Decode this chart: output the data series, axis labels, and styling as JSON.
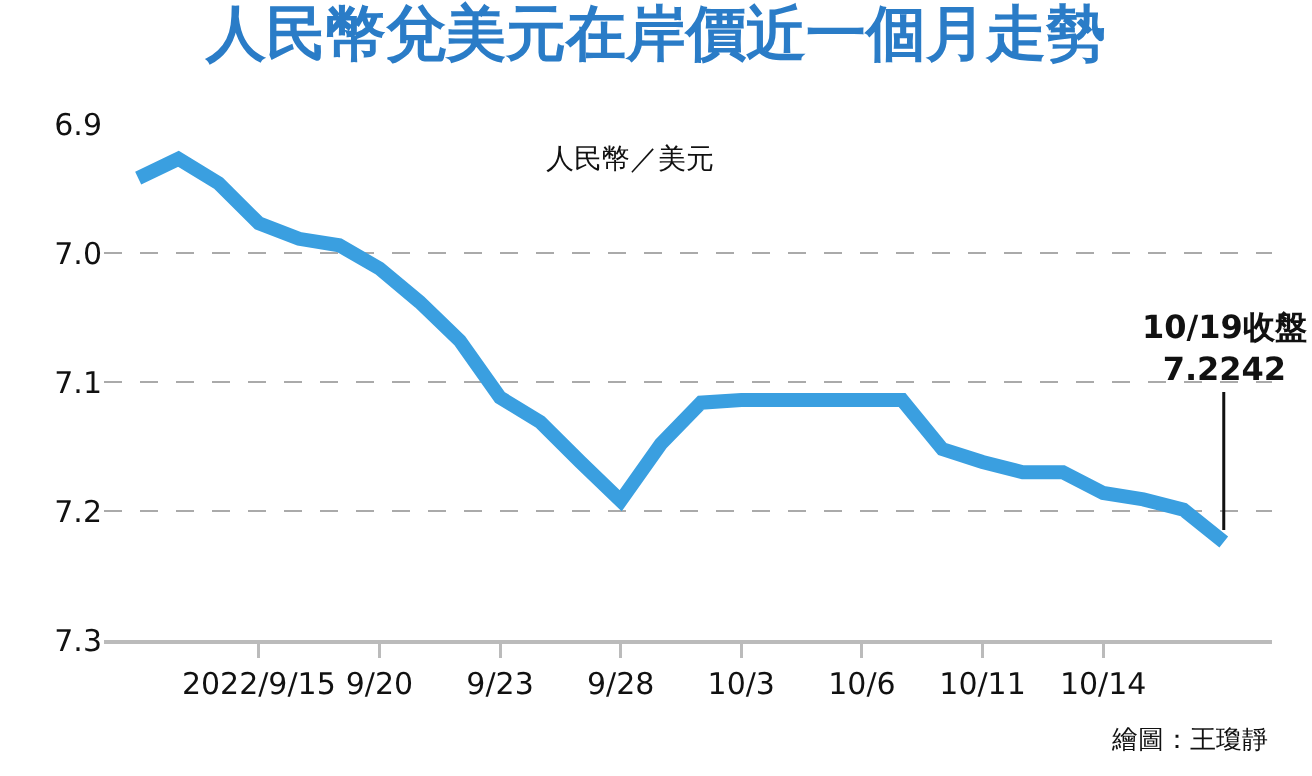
{
  "chart_data": {
    "type": "line",
    "title": "人民幣兌美元在岸價近一個月走勢",
    "ylabel": "人民幣／美元",
    "categories": [
      null,
      null,
      null,
      "2022/9/15",
      null,
      null,
      "9/20",
      null,
      null,
      "9/23",
      null,
      null,
      "9/28",
      null,
      null,
      "10/3",
      null,
      null,
      "10/6",
      null,
      null,
      "10/11",
      null,
      null,
      "10/14",
      null,
      null,
      null
    ],
    "series": [
      {
        "color": "#3a9fe0",
        "values": [
          6.942,
          6.927,
          6.946,
          6.977,
          6.989,
          6.994,
          7.012,
          7.038,
          7.068,
          7.112,
          7.131,
          7.162,
          7.192,
          7.148,
          7.116,
          7.114,
          7.114,
          7.114,
          7.114,
          7.114,
          7.152,
          7.162,
          7.17,
          7.17,
          7.186,
          7.191,
          7.199,
          7.224
        ]
      }
    ],
    "ylim": [
      7.3,
      6.9
    ],
    "yticks": [
      6.9,
      {
        "value": 7,
        "label": "7.0"
      },
      7.1,
      7.2,
      7.3
    ],
    "grid": "y",
    "marker": "none",
    "line_style": "solid",
    "annotations": [
      {
        "text": "10/19收盤\n7.2242",
        "y": 7.224
      },
      "繪圖：王瓊靜"
    ]
  }
}
